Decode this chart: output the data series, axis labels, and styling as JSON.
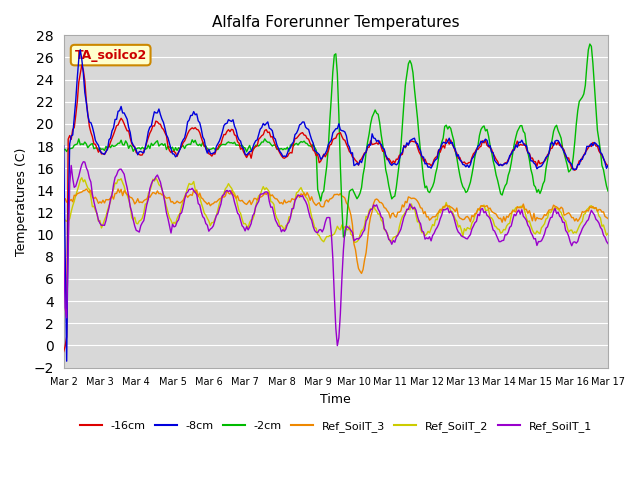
{
  "title": "Alfalfa Forerunner Temperatures",
  "xlabel": "Time",
  "ylabel": "Temperatures (C)",
  "ylim": [
    -2,
    28
  ],
  "xlim": [
    0,
    15
  ],
  "yticks": [
    -2,
    0,
    2,
    4,
    6,
    8,
    10,
    12,
    14,
    16,
    18,
    20,
    22,
    24,
    26,
    28
  ],
  "xtick_labels": [
    "Mar 2",
    "Mar 3",
    "Mar 4",
    "Mar 5",
    "Mar 6",
    "Mar 7",
    "Mar 8",
    "Mar 9",
    "Mar 10",
    "Mar 11",
    "Mar 12",
    "Mar 13",
    "Mar 14",
    "Mar 15",
    "Mar 16",
    "Mar 17"
  ],
  "annotation_text": "TA_soilco2",
  "bg_color": "#d8d8d8",
  "grid_color": "#ffffff",
  "line_width": 1.0,
  "colors": {
    "-16cm": "#dd0000",
    "-8cm": "#0000dd",
    "-2cm": "#00bb00",
    "Ref_SoilT_3": "#ee8800",
    "Ref_SoilT_2": "#cccc00",
    "Ref_SoilT_1": "#9900cc"
  },
  "legend_entries": [
    {
      "label": "-16cm",
      "color": "#dd0000"
    },
    {
      "label": "-8cm",
      "color": "#0000dd"
    },
    {
      "label": "-2cm",
      "color": "#00bb00"
    },
    {
      "label": "Ref_SoilT_3",
      "color": "#ee8800"
    },
    {
      "label": "Ref_SoilT_2",
      "color": "#cccc00"
    },
    {
      "label": "Ref_SoilT_1",
      "color": "#9900cc"
    }
  ]
}
